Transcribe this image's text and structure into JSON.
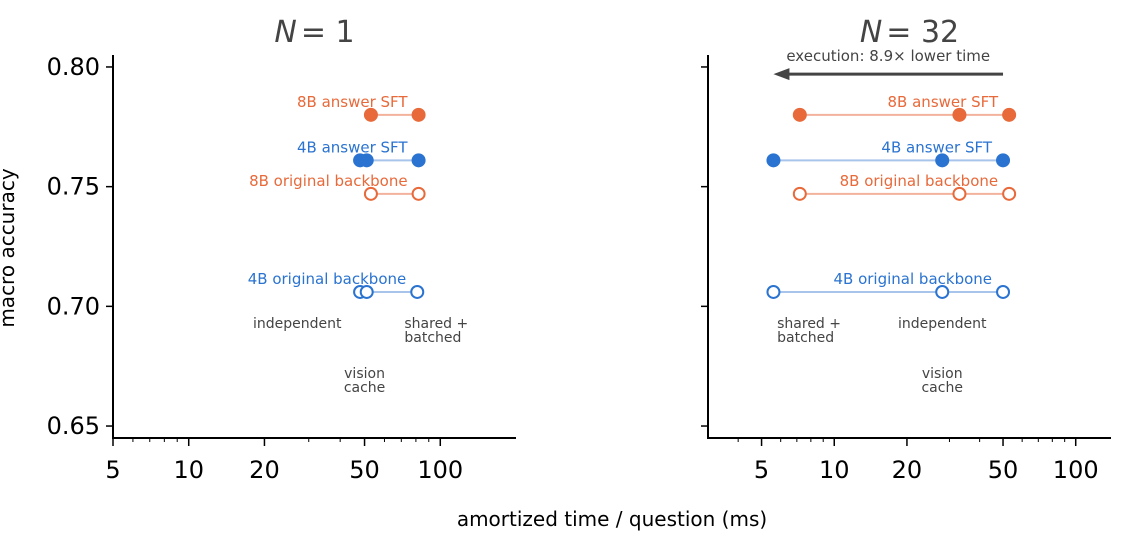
{
  "figure": {
    "xlabel": "amortized time / question (ms)",
    "ylabel": "macro accuracy"
  },
  "colors": {
    "orange": "#e8693a",
    "orange_line": "#f2b29c",
    "blue": "#2a73d0",
    "blue_line": "#a9c4ea",
    "annotation": "#444444"
  },
  "chart_data": [
    {
      "type": "scatter",
      "panel": "N=1",
      "title_var": "N",
      "title_eq": "= 1",
      "x_scale": "log",
      "xlim": [
        5,
        200
      ],
      "ylim": [
        0.645,
        0.805
      ],
      "xticks": [
        5,
        10,
        20,
        50,
        100
      ],
      "xtick_labels": [
        "5",
        "10",
        "20",
        "50",
        "100"
      ],
      "yticks": [
        0.65,
        0.7,
        0.75,
        0.8
      ],
      "ytick_labels": [
        "0.65",
        "0.70",
        "0.75",
        "0.80"
      ],
      "series": [
        {
          "name": "8B answer SFT",
          "y": 0.78,
          "x": [
            53,
            82
          ],
          "filled": true,
          "color": "orange"
        },
        {
          "name": "4B answer SFT",
          "y": 0.761,
          "x": [
            48,
            51,
            82
          ],
          "filled": true,
          "color": "blue"
        },
        {
          "name": "8B original backbone",
          "y": 0.747,
          "x": [
            53,
            82
          ],
          "filled": false,
          "color": "orange"
        },
        {
          "name": "4B original backbone",
          "y": 0.706,
          "x": [
            48,
            51,
            81
          ],
          "filled": false,
          "color": "blue"
        }
      ],
      "annotations": [
        {
          "lines": [
            "independent"
          ],
          "x": 27,
          "y": 0.691,
          "anchor": "middle"
        },
        {
          "lines": [
            "shared +",
            "batched"
          ],
          "x": 72,
          "y": 0.691,
          "anchor": "start"
        },
        {
          "lines": [
            "vision",
            "cache"
          ],
          "x": 50,
          "y": 0.67,
          "anchor": "middle"
        }
      ]
    },
    {
      "type": "scatter",
      "panel": "N=32",
      "title_var": "N",
      "title_eq": "= 32",
      "x_scale": "log",
      "xlim": [
        3,
        140
      ],
      "ylim": [
        0.645,
        0.805
      ],
      "xticks": [
        5,
        10,
        20,
        50,
        100
      ],
      "xtick_labels": [
        "5",
        "10",
        "20",
        "50",
        "100"
      ],
      "yticks": [
        0.65,
        0.7,
        0.75,
        0.8
      ],
      "ytick_labels": [
        "",
        "",
        "",
        ""
      ],
      "series": [
        {
          "name": "8B answer SFT",
          "y": 0.78,
          "x": [
            7.2,
            33,
            53
          ],
          "filled": true,
          "color": "orange"
        },
        {
          "name": "4B answer SFT",
          "y": 0.761,
          "x": [
            5.6,
            28,
            50
          ],
          "filled": true,
          "color": "blue"
        },
        {
          "name": "8B original backbone",
          "y": 0.747,
          "x": [
            7.2,
            33,
            53
          ],
          "filled": false,
          "color": "orange"
        },
        {
          "name": "4B original backbone",
          "y": 0.706,
          "x": [
            5.6,
            28,
            50
          ],
          "filled": false,
          "color": "blue"
        }
      ],
      "annotations": [
        {
          "lines": [
            "shared +",
            "batched"
          ],
          "x": 5.8,
          "y": 0.691,
          "anchor": "start"
        },
        {
          "lines": [
            "independent"
          ],
          "x": 28,
          "y": 0.691,
          "anchor": "middle"
        },
        {
          "lines": [
            "vision",
            "cache"
          ],
          "x": 28,
          "y": 0.67,
          "anchor": "middle"
        }
      ],
      "arrow": {
        "text": "execution: 8.9× lower time",
        "from_x": 50,
        "to_x": 5.6,
        "y": 0.797
      }
    }
  ]
}
